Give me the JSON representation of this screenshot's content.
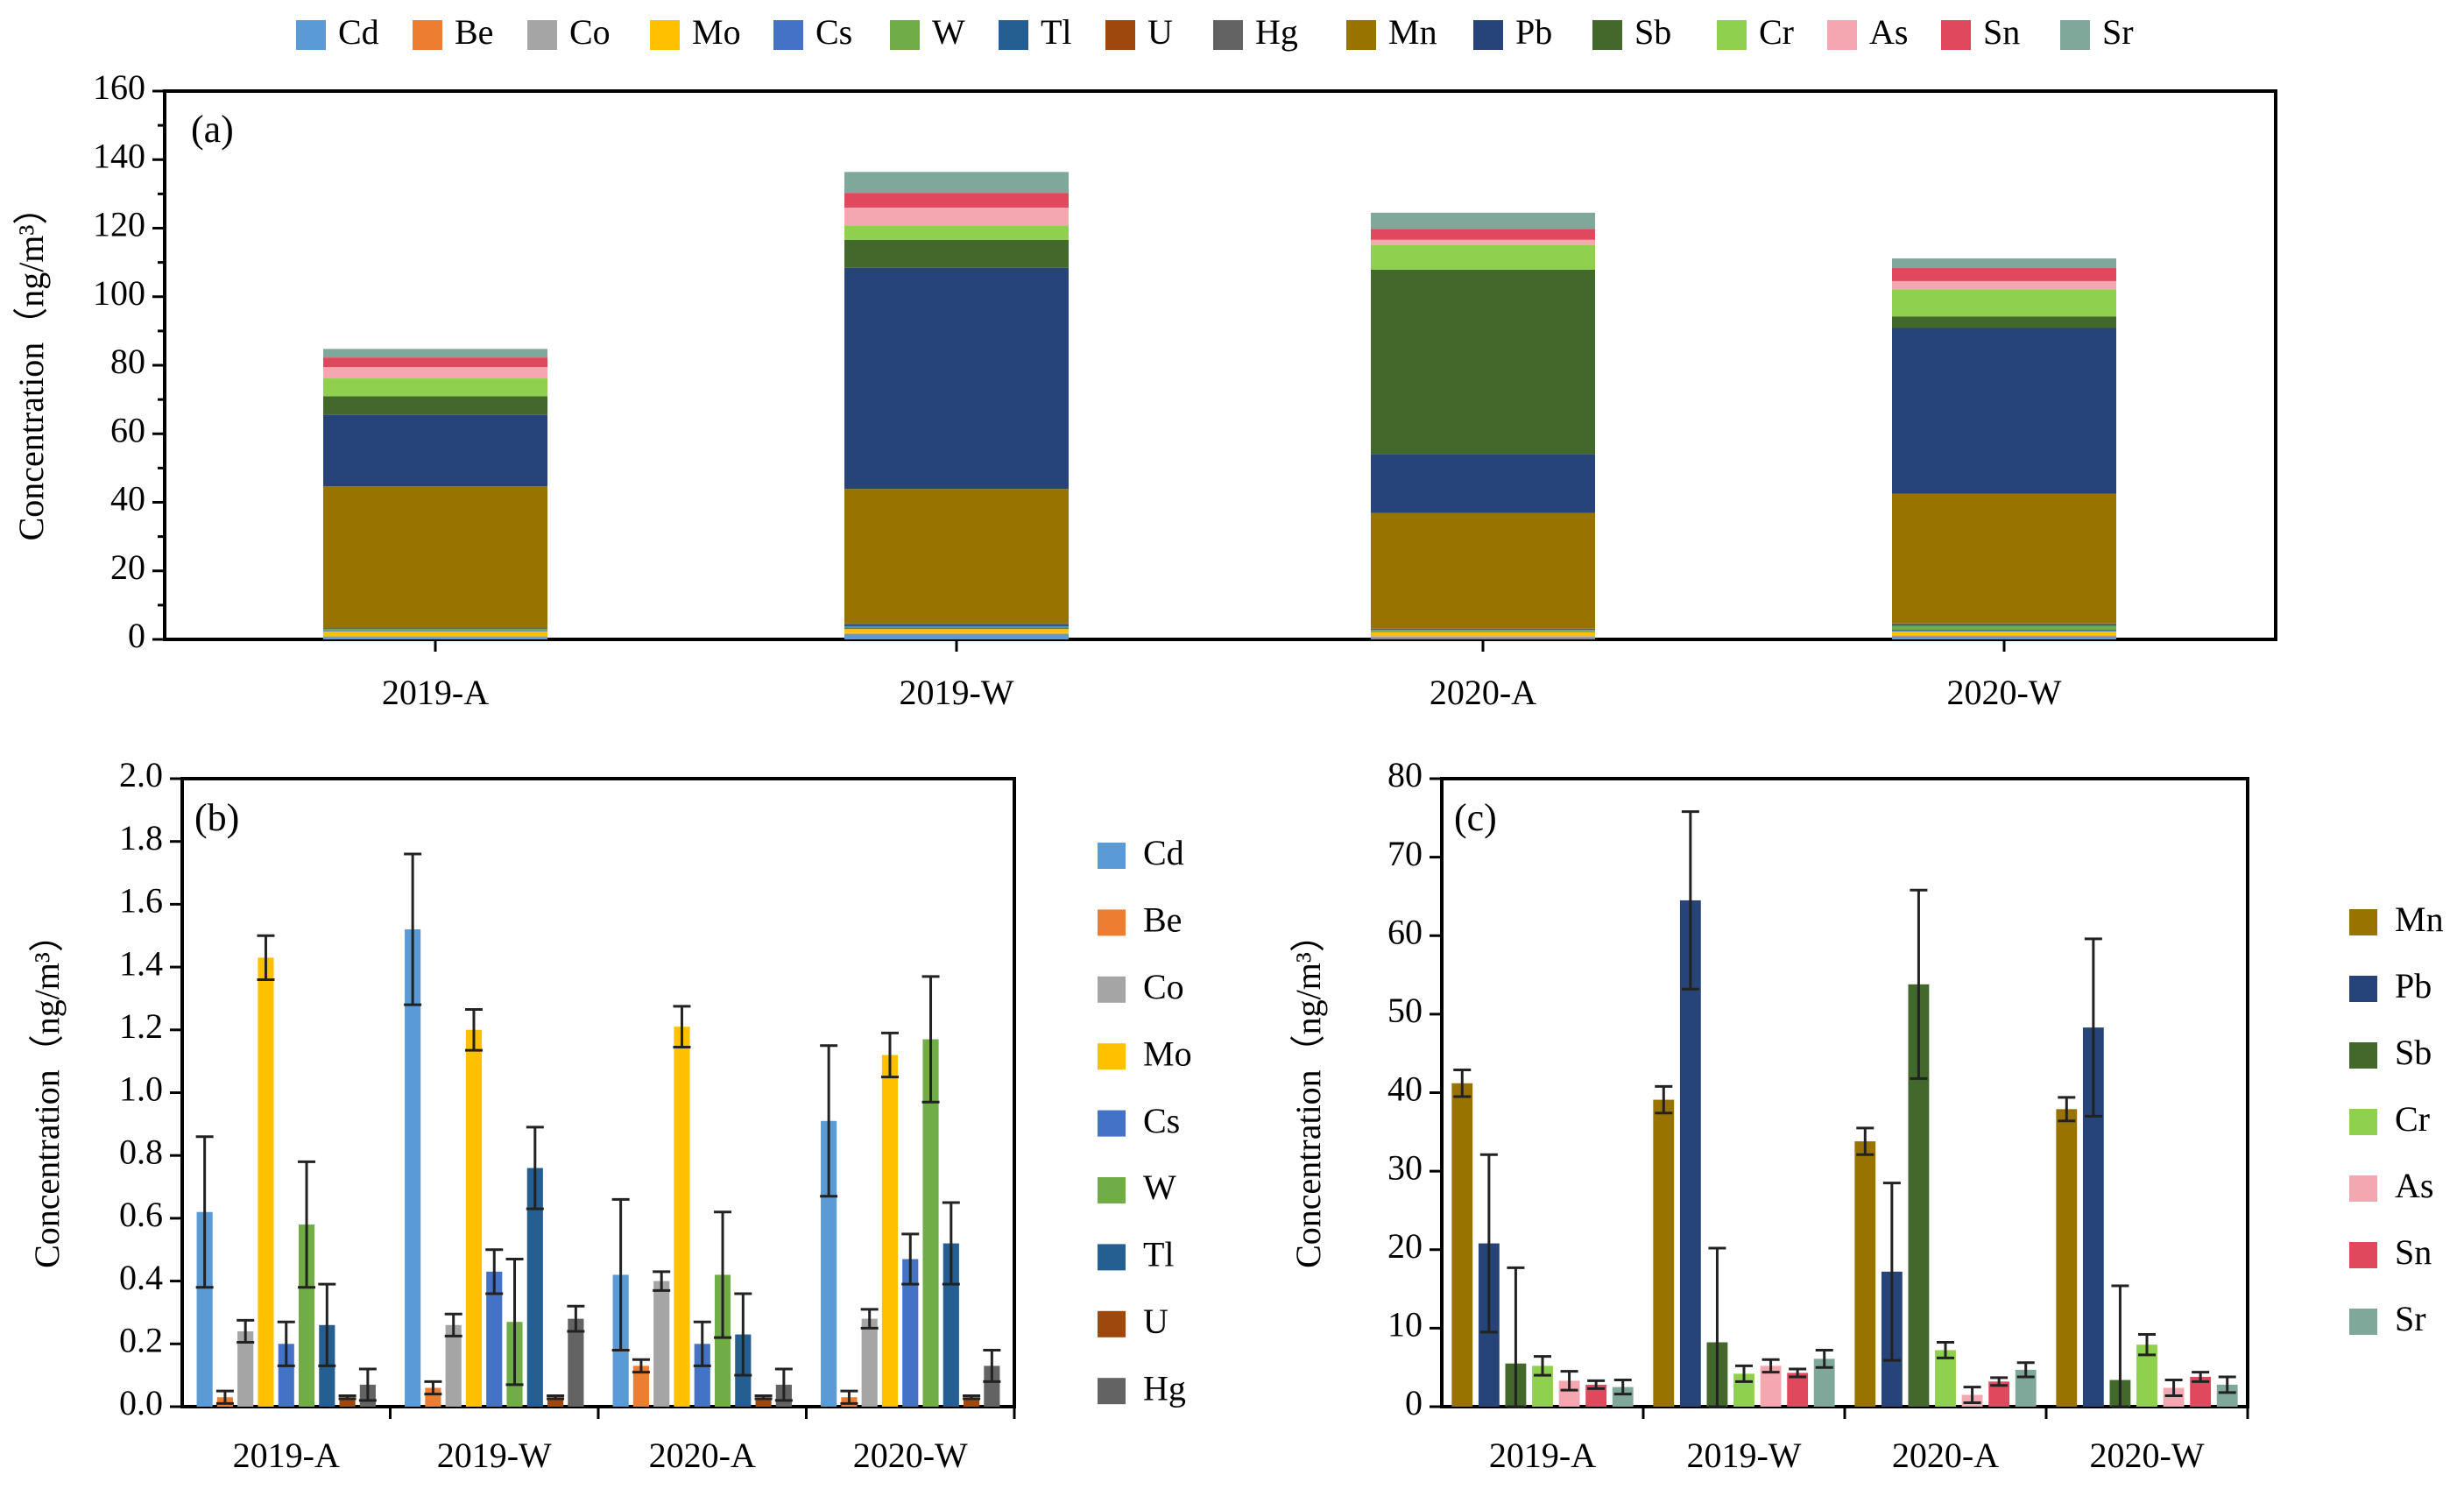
{
  "chart_data": [
    {
      "id": "a",
      "type": "bar",
      "stacked": true,
      "panel_label": "(a)",
      "ylabel": "Concentration（ng/m³）",
      "ylim": [
        0,
        160
      ],
      "yticks": [
        0,
        20,
        40,
        60,
        80,
        100,
        120,
        140,
        160
      ],
      "categories": [
        "2019-A",
        "2019-W",
        "2020-A",
        "2020-W"
      ],
      "legend_position": "top",
      "series": [
        {
          "name": "Cd",
          "color": "#5b9bd5",
          "values": [
            0.62,
            1.52,
            0.42,
            0.91
          ]
        },
        {
          "name": "Be",
          "color": "#ed7d31",
          "values": [
            0.03,
            0.06,
            0.13,
            0.03
          ]
        },
        {
          "name": "Co",
          "color": "#a5a5a5",
          "values": [
            0.24,
            0.26,
            0.4,
            0.28
          ]
        },
        {
          "name": "Mo",
          "color": "#ffc000",
          "values": [
            1.43,
            1.2,
            1.21,
            1.12
          ]
        },
        {
          "name": "Cs",
          "color": "#4472c4",
          "values": [
            0.2,
            0.43,
            0.2,
            0.47
          ]
        },
        {
          "name": "W",
          "color": "#70ad47",
          "values": [
            0.58,
            0.27,
            0.42,
            1.17
          ]
        },
        {
          "name": "Tl",
          "color": "#255e91",
          "values": [
            0.26,
            0.76,
            0.23,
            0.52
          ]
        },
        {
          "name": "U",
          "color": "#9e480e",
          "values": [
            0.03,
            0.03,
            0.03,
            0.03
          ]
        },
        {
          "name": "Hg",
          "color": "#636363",
          "values": [
            0.07,
            0.28,
            0.07,
            0.13
          ]
        },
        {
          "name": "Mn",
          "color": "#997300",
          "values": [
            41.2,
            39.1,
            33.8,
            37.9
          ]
        },
        {
          "name": "Pb",
          "color": "#264478",
          "values": [
            20.8,
            64.5,
            17.2,
            48.3
          ]
        },
        {
          "name": "Sb",
          "color": "#43682b",
          "values": [
            5.5,
            8.2,
            53.8,
            3.4
          ]
        },
        {
          "name": "Cr",
          "color": "#8fd14f",
          "values": [
            5.2,
            4.2,
            7.2,
            7.9
          ]
        },
        {
          "name": "As",
          "color": "#f4a7b0",
          "values": [
            3.3,
            5.2,
            1.5,
            2.4
          ]
        },
        {
          "name": "Sn",
          "color": "#e0485e",
          "values": [
            2.8,
            4.3,
            3.2,
            3.8
          ]
        },
        {
          "name": "Sr",
          "color": "#7fa89a",
          "values": [
            2.5,
            6.1,
            4.7,
            2.8
          ]
        }
      ]
    },
    {
      "id": "b",
      "type": "bar",
      "grouped": true,
      "error_bars": true,
      "panel_label": "(b)",
      "ylabel": "Concentration（ng/m³）",
      "ylim": [
        0,
        2.0
      ],
      "yticks": [
        "0.0",
        "0.2",
        "0.4",
        "0.6",
        "0.8",
        "1.0",
        "1.2",
        "1.4",
        "1.6",
        "1.8",
        "2.0"
      ],
      "categories": [
        "2019-A",
        "2019-W",
        "2020-A",
        "2020-W"
      ],
      "legend_position": "right",
      "series": [
        {
          "name": "Cd",
          "color": "#5b9bd5",
          "values": [
            0.62,
            1.52,
            0.42,
            0.91
          ],
          "errors": [
            0.24,
            0.24,
            0.24,
            0.24
          ]
        },
        {
          "name": "Be",
          "color": "#ed7d31",
          "values": [
            0.03,
            0.06,
            0.13,
            0.03
          ],
          "errors": [
            0.02,
            0.02,
            0.02,
            0.02
          ]
        },
        {
          "name": "Co",
          "color": "#a5a5a5",
          "values": [
            0.24,
            0.26,
            0.4,
            0.28
          ],
          "errors": [
            0.035,
            0.035,
            0.03,
            0.03
          ]
        },
        {
          "name": "Mo",
          "color": "#ffc000",
          "values": [
            1.43,
            1.2,
            1.21,
            1.12
          ],
          "errors": [
            0.07,
            0.065,
            0.065,
            0.07
          ]
        },
        {
          "name": "Cs",
          "color": "#4472c4",
          "values": [
            0.2,
            0.43,
            0.2,
            0.47
          ],
          "errors": [
            0.07,
            0.07,
            0.07,
            0.08
          ]
        },
        {
          "name": "W",
          "color": "#70ad47",
          "values": [
            0.58,
            0.27,
            0.42,
            1.17
          ],
          "errors": [
            0.2,
            0.2,
            0.2,
            0.2
          ]
        },
        {
          "name": "Tl",
          "color": "#255e91",
          "values": [
            0.26,
            0.76,
            0.23,
            0.52
          ],
          "errors": [
            0.13,
            0.13,
            0.13,
            0.13
          ]
        },
        {
          "name": "U",
          "color": "#9e480e",
          "values": [
            0.03,
            0.03,
            0.03,
            0.03
          ],
          "errors": [
            0.005,
            0.005,
            0.005,
            0.005
          ]
        },
        {
          "name": "Hg",
          "color": "#636363",
          "values": [
            0.07,
            0.28,
            0.07,
            0.13
          ],
          "errors": [
            0.05,
            0.04,
            0.05,
            0.05
          ]
        }
      ]
    },
    {
      "id": "c",
      "type": "bar",
      "grouped": true,
      "error_bars": true,
      "panel_label": "(c)",
      "ylabel": "Concentration（ng/m³）",
      "ylim": [
        0,
        80
      ],
      "yticks": [
        0,
        10,
        20,
        30,
        40,
        50,
        60,
        70,
        80
      ],
      "categories": [
        "2019-A",
        "2019-W",
        "2020-A",
        "2020-W"
      ],
      "legend_position": "right",
      "series": [
        {
          "name": "Mn",
          "color": "#997300",
          "values": [
            41.2,
            39.1,
            33.8,
            37.9
          ],
          "errors": [
            1.7,
            1.7,
            1.7,
            1.5
          ]
        },
        {
          "name": "Pb",
          "color": "#264478",
          "values": [
            20.8,
            64.5,
            17.2,
            48.3
          ],
          "errors": [
            11.3,
            11.3,
            11.3,
            11.3
          ]
        },
        {
          "name": "Sb",
          "color": "#43682b",
          "values": [
            5.5,
            8.2,
            53.8,
            3.4
          ],
          "errors": [
            12.2,
            12.0,
            12.0,
            12.0
          ]
        },
        {
          "name": "Cr",
          "color": "#8fd14f",
          "values": [
            5.2,
            4.2,
            7.2,
            7.9
          ],
          "errors": [
            1.2,
            1.0,
            1.0,
            1.3
          ]
        },
        {
          "name": "As",
          "color": "#f4a7b0",
          "values": [
            3.3,
            5.2,
            1.5,
            2.4
          ],
          "errors": [
            1.2,
            0.8,
            1.0,
            1.0
          ]
        },
        {
          "name": "Sn",
          "color": "#e0485e",
          "values": [
            2.8,
            4.3,
            3.2,
            3.8
          ],
          "errors": [
            0.5,
            0.5,
            0.5,
            0.6
          ]
        },
        {
          "name": "Sr",
          "color": "#7fa89a",
          "values": [
            2.5,
            6.1,
            4.7,
            2.8
          ],
          "errors": [
            0.9,
            1.1,
            0.9,
            1.0
          ]
        }
      ]
    }
  ]
}
